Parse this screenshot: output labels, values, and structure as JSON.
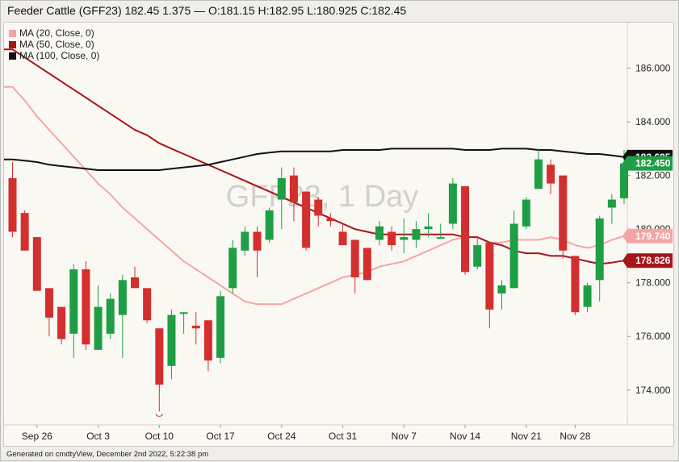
{
  "header": {
    "title": "Feeder Cattle (GFF23) 182.45 1.375 — O:181.15 H:182.95 L:180.925 C:182.45"
  },
  "legend": [
    {
      "label": "MA (20, Close, 0)",
      "color": "#f4a6a6"
    },
    {
      "label": "MA (50, Close, 0)",
      "color": "#a4161a"
    },
    {
      "label": "MA (100, Close, 0)",
      "color": "#111111"
    }
  ],
  "watermark": "GFF23, 1 Day",
  "footer": "Generated on cmdtyView, December 2nd 2022, 5:22:38 pm",
  "colors": {
    "up": "#1e9e45",
    "down": "#d32f2f",
    "ma20": "#f4a6a6",
    "ma50": "#a4161a",
    "ma100": "#111111"
  },
  "chart_data": {
    "type": "candlestick",
    "ylim": [
      172.7,
      187.7
    ],
    "yticks": [
      "174.000",
      "176.000",
      "178.000",
      "180.000",
      "182.000",
      "184.000",
      "186.000"
    ],
    "xticks": [
      {
        "label": "Sep 26",
        "index": 2
      },
      {
        "label": "Oct 3",
        "index": 7
      },
      {
        "label": "Oct 10",
        "index": 12
      },
      {
        "label": "Oct 17",
        "index": 17
      },
      {
        "label": "Oct 24",
        "index": 22
      },
      {
        "label": "Oct 31",
        "index": 27
      },
      {
        "label": "Nov 7",
        "index": 32
      },
      {
        "label": "Nov 14",
        "index": 37
      },
      {
        "label": "Nov 21",
        "index": 42
      },
      {
        "label": "Nov 28",
        "index": 46
      }
    ],
    "candles": [
      {
        "o": 181.9,
        "h": 182.5,
        "l": 179.7,
        "c": 179.9
      },
      {
        "o": 180.6,
        "h": 180.7,
        "l": 179.2,
        "c": 179.2
      },
      {
        "o": 179.7,
        "h": 179.7,
        "l": 177.7,
        "c": 177.7
      },
      {
        "o": 177.8,
        "h": 177.8,
        "l": 176.0,
        "c": 176.7
      },
      {
        "o": 177.1,
        "h": 177.1,
        "l": 175.7,
        "c": 175.9
      },
      {
        "o": 176.1,
        "h": 178.7,
        "l": 175.2,
        "c": 178.5
      },
      {
        "o": 178.5,
        "h": 178.8,
        "l": 175.5,
        "c": 175.7
      },
      {
        "o": 175.5,
        "h": 177.9,
        "l": 175.5,
        "c": 177.1
      },
      {
        "o": 176.1,
        "h": 177.6,
        "l": 175.9,
        "c": 177.4
      },
      {
        "o": 176.8,
        "h": 178.3,
        "l": 175.2,
        "c": 178.1
      },
      {
        "o": 178.2,
        "h": 178.6,
        "l": 177.9,
        "c": 177.8
      },
      {
        "o": 177.8,
        "h": 177.8,
        "l": 176.5,
        "c": 176.6
      },
      {
        "o": 176.3,
        "h": 176.3,
        "l": 173.2,
        "c": 174.2
      },
      {
        "o": 174.9,
        "h": 177.0,
        "l": 174.4,
        "c": 176.8
      },
      {
        "o": 176.9,
        "h": 176.9,
        "l": 176.1,
        "c": 176.9
      },
      {
        "o": 176.4,
        "h": 176.9,
        "l": 175.7,
        "c": 176.3
      },
      {
        "o": 176.6,
        "h": 176.6,
        "l": 174.7,
        "c": 175.1
      },
      {
        "o": 175.2,
        "h": 177.7,
        "l": 175.0,
        "c": 177.5
      },
      {
        "o": 177.8,
        "h": 179.6,
        "l": 177.6,
        "c": 179.3
      },
      {
        "o": 179.2,
        "h": 180.1,
        "l": 179.0,
        "c": 179.9
      },
      {
        "o": 179.9,
        "h": 180.1,
        "l": 178.2,
        "c": 179.2
      },
      {
        "o": 179.6,
        "h": 180.8,
        "l": 179.5,
        "c": 180.7
      },
      {
        "o": 181.1,
        "h": 182.3,
        "l": 180.0,
        "c": 181.9
      },
      {
        "o": 182.0,
        "h": 182.3,
        "l": 180.3,
        "c": 181.0
      },
      {
        "o": 181.4,
        "h": 181.4,
        "l": 179.2,
        "c": 179.3
      },
      {
        "o": 181.1,
        "h": 181.2,
        "l": 180.1,
        "c": 180.5
      },
      {
        "o": 180.4,
        "h": 180.6,
        "l": 180.1,
        "c": 180.3
      },
      {
        "o": 179.9,
        "h": 180.2,
        "l": 179.4,
        "c": 179.4
      },
      {
        "o": 179.6,
        "h": 179.6,
        "l": 177.6,
        "c": 178.2
      },
      {
        "o": 179.3,
        "h": 179.3,
        "l": 178.1,
        "c": 178.1
      },
      {
        "o": 179.6,
        "h": 180.3,
        "l": 179.4,
        "c": 180.1
      },
      {
        "o": 179.9,
        "h": 180.1,
        "l": 179.2,
        "c": 179.4
      },
      {
        "o": 179.6,
        "h": 180.4,
        "l": 179.1,
        "c": 179.7
      },
      {
        "o": 179.6,
        "h": 180.3,
        "l": 179.3,
        "c": 180.0
      },
      {
        "o": 180.0,
        "h": 180.6,
        "l": 179.7,
        "c": 180.1
      },
      {
        "o": 179.7,
        "h": 180.2,
        "l": 179.7,
        "c": 179.7
      },
      {
        "o": 180.2,
        "h": 181.9,
        "l": 180.0,
        "c": 181.7
      },
      {
        "o": 181.6,
        "h": 181.6,
        "l": 178.3,
        "c": 178.4
      },
      {
        "o": 178.6,
        "h": 179.7,
        "l": 178.5,
        "c": 179.4
      },
      {
        "o": 179.5,
        "h": 179.5,
        "l": 176.3,
        "c": 177.0
      },
      {
        "o": 177.6,
        "h": 178.1,
        "l": 177.0,
        "c": 177.9
      },
      {
        "o": 177.8,
        "h": 180.7,
        "l": 177.8,
        "c": 180.2
      },
      {
        "o": 180.1,
        "h": 181.2,
        "l": 180.0,
        "c": 181.1
      },
      {
        "o": 181.5,
        "h": 183.0,
        "l": 181.5,
        "c": 182.6
      },
      {
        "o": 182.4,
        "h": 182.6,
        "l": 181.3,
        "c": 181.7
      },
      {
        "o": 182.0,
        "h": 182.0,
        "l": 178.9,
        "c": 179.2
      },
      {
        "o": 179.0,
        "h": 179.0,
        "l": 176.8,
        "c": 176.9
      },
      {
        "o": 177.1,
        "h": 178.0,
        "l": 176.9,
        "c": 177.9
      },
      {
        "o": 178.1,
        "h": 180.5,
        "l": 177.3,
        "c": 180.4
      },
      {
        "o": 180.8,
        "h": 181.3,
        "l": 180.2,
        "c": 181.1
      },
      {
        "o": 181.15,
        "h": 182.95,
        "l": 180.925,
        "c": 182.45
      }
    ],
    "ma20": [
      185.3,
      184.8,
      184.2,
      183.7,
      183.2,
      182.7,
      182.2,
      181.7,
      181.3,
      180.8,
      180.4,
      180.0,
      179.6,
      179.2,
      178.8,
      178.5,
      178.2,
      177.9,
      177.6,
      177.3,
      177.2,
      177.2,
      177.2,
      177.4,
      177.6,
      177.8,
      178.0,
      178.2,
      178.3,
      178.4,
      178.6,
      178.7,
      178.8,
      179.0,
      179.2,
      179.4,
      179.6,
      179.7,
      179.7,
      179.5,
      179.5,
      179.6,
      179.6,
      179.6,
      179.7,
      179.6,
      179.4,
      179.3,
      179.4,
      179.6,
      179.74
    ],
    "ma50": [
      186.7,
      186.4,
      186.1,
      185.8,
      185.5,
      185.2,
      184.9,
      184.6,
      184.3,
      184.0,
      183.7,
      183.5,
      183.2,
      183.0,
      182.8,
      182.6,
      182.4,
      182.2,
      182.0,
      181.8,
      181.6,
      181.4,
      181.2,
      181.0,
      180.8,
      180.6,
      180.4,
      180.2,
      180.0,
      179.9,
      179.8,
      179.8,
      179.8,
      179.8,
      179.8,
      179.8,
      179.8,
      179.7,
      179.7,
      179.5,
      179.4,
      179.2,
      179.1,
      179.1,
      179.0,
      179.0,
      178.9,
      178.8,
      178.7,
      178.75,
      178.826
    ],
    "ma100": [
      182.6,
      182.55,
      182.5,
      182.4,
      182.35,
      182.3,
      182.25,
      182.2,
      182.2,
      182.2,
      182.2,
      182.2,
      182.2,
      182.25,
      182.3,
      182.35,
      182.4,
      182.5,
      182.6,
      182.7,
      182.8,
      182.85,
      182.9,
      182.9,
      182.9,
      182.9,
      182.9,
      182.95,
      182.95,
      182.95,
      182.95,
      183.0,
      183.0,
      183.0,
      183.0,
      183.0,
      183.0,
      182.95,
      182.95,
      182.95,
      183.0,
      183.0,
      183.0,
      182.95,
      182.95,
      182.9,
      182.85,
      182.8,
      182.8,
      182.75,
      182.685
    ],
    "price_labels": [
      {
        "text": "182.685",
        "value": 182.685,
        "color": "#111111"
      },
      {
        "text": "182.450",
        "value": 182.45,
        "color": "#1e9e45"
      },
      {
        "text": "179.740",
        "value": 179.74,
        "color": "#f4a6a6"
      },
      {
        "text": "178.826",
        "value": 178.826,
        "color": "#a4161a"
      }
    ]
  }
}
